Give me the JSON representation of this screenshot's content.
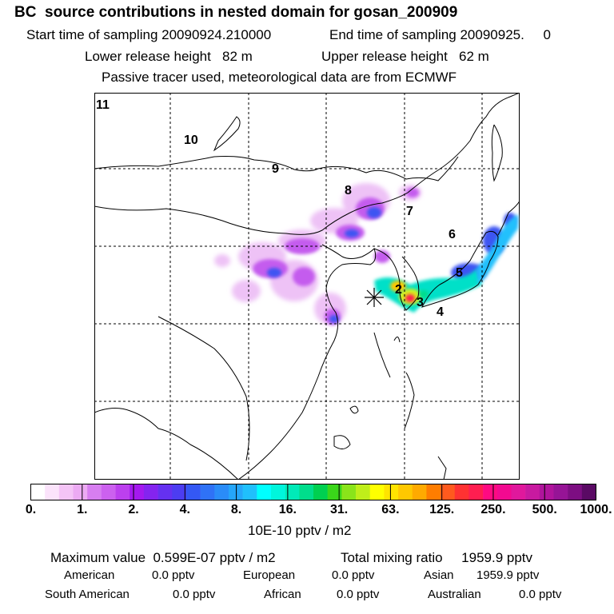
{
  "header": {
    "title": "BC  source contributions in nested domain for gosan_200909",
    "start_sampling": "Start time of sampling 20090924.210000",
    "end_sampling": "End time of sampling 20090925.     0",
    "lower_release": "Lower release height   82 m",
    "upper_release": "Upper release height   62 m",
    "tracer_note": "Passive tracer used, meteorological data are from ECMWF"
  },
  "map": {
    "grid_labels": [
      "11",
      "10",
      "9",
      "8",
      "7",
      "6",
      "5",
      "4",
      "3",
      "2"
    ],
    "receptor_marker": "star-marker",
    "colors": {
      "coast": "#000000",
      "grid": "#000000"
    }
  },
  "colorbar": {
    "tick_labels": [
      "0.",
      "1.",
      "2.",
      "4.",
      "8.",
      "16.",
      "31.",
      "63.",
      "125.",
      "250.",
      "500.",
      "1000."
    ],
    "colors": [
      "#ffffff",
      "#fbe3fb",
      "#f4c4f6",
      "#ecaaf3",
      "#d77ef0",
      "#cc61ef",
      "#bc40ee",
      "#a419ee",
      "#8424ef",
      "#6531f0",
      "#4c3df1",
      "#3458f4",
      "#2f72f6",
      "#2a8cf8",
      "#25a6fa",
      "#20c0fc",
      "#00ffff",
      "#00f5dc",
      "#00eab8",
      "#00dd8c",
      "#00d050",
      "#3ad61a",
      "#8ae41a",
      "#bfee1a",
      "#ffff00",
      "#ffe400",
      "#ffc800",
      "#ffaa00",
      "#ff7d00",
      "#ff5a1e",
      "#ff3232",
      "#ff1e50",
      "#ff0a82",
      "#f20a90",
      "#e0189c",
      "#c81aa0",
      "#b0149c",
      "#961496",
      "#7d0e82",
      "#5a0a64"
    ],
    "unit": "10E-10 pptv / m2"
  },
  "summary": {
    "maximum": "Maximum value  0.599E-07 pptv / m2",
    "total": "Total mixing ratio     1959.9 pptv",
    "regions": [
      {
        "name": "American",
        "value": "0.0 pptv"
      },
      {
        "name": "European",
        "value": "0.0 pptv"
      },
      {
        "name": "Asian",
        "value": "1959.9 pptv"
      },
      {
        "name": "South American",
        "value": "0.0 pptv"
      },
      {
        "name": "African",
        "value": "0.0 pptv"
      },
      {
        "name": "Australian",
        "value": "0.0 pptv"
      }
    ]
  }
}
